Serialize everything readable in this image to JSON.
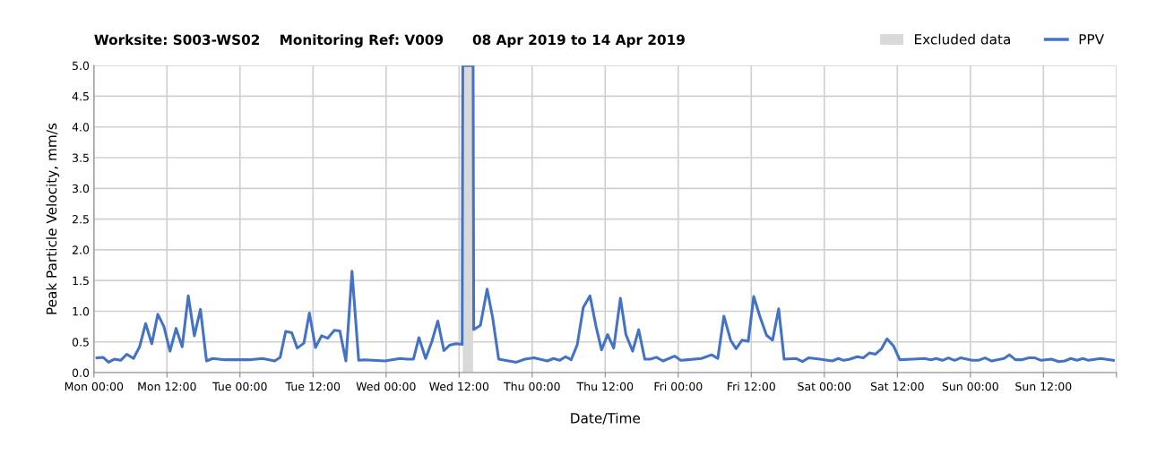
{
  "chart_data": {
    "type": "line",
    "title": "Worksite: S003-WS02    Monitoring Ref: V009      08 Apr 2019 to 14 Apr 2019",
    "xlabel": "Date/Time",
    "ylabel": "Peak Particle Velocity, mm/s",
    "series": [
      {
        "name": "PPV",
        "color": "#4472c4",
        "x": [
          "2019-04-08T00:30",
          "2019-04-08T01:30",
          "2019-04-08T02:24",
          "2019-04-08T03:24",
          "2019-04-08T04:24",
          "2019-04-08T05:24",
          "2019-04-08T06:30",
          "2019-04-08T07:30",
          "2019-04-08T08:30",
          "2019-04-08T09:30",
          "2019-04-08T10:30",
          "2019-04-08T11:30",
          "2019-04-08T12:30",
          "2019-04-08T13:30",
          "2019-04-08T14:30",
          "2019-04-08T15:30",
          "2019-04-08T16:30",
          "2019-04-08T17:30",
          "2019-04-08T18:30",
          "2019-04-08T19:30",
          "2019-04-08T21:30",
          "2019-04-08T23:30",
          "2019-04-09T01:30",
          "2019-04-09T03:42",
          "2019-04-09T05:42",
          "2019-04-09T06:36",
          "2019-04-09T07:30",
          "2019-04-09T08:30",
          "2019-04-09T09:24",
          "2019-04-09T10:30",
          "2019-04-09T11:24",
          "2019-04-09T12:24",
          "2019-04-09T13:24",
          "2019-04-09T14:24",
          "2019-04-09T15:30",
          "2019-04-09T16:24",
          "2019-04-09T17:24",
          "2019-04-09T18:24",
          "2019-04-09T19:30",
          "2019-04-09T20:30",
          "2019-04-09T23:48",
          "2019-04-10T02:18",
          "2019-04-10T03:30",
          "2019-04-10T04:30",
          "2019-04-10T05:24",
          "2019-04-10T06:30",
          "2019-04-10T07:30",
          "2019-04-10T08:30",
          "2019-04-10T09:30",
          "2019-04-10T10:30",
          "2019-04-10T11:30",
          "2019-04-10T12:30",
          "2019-04-10T12:36",
          "2019-04-10T14:18",
          "2019-04-10T14:24",
          "2019-04-10T15:30",
          "2019-04-10T16:36",
          "2019-04-10T17:30",
          "2019-04-10T18:30",
          "2019-04-10T21:24",
          "2019-04-10T22:48",
          "2019-04-11T00:18",
          "2019-04-11T02:30",
          "2019-04-11T03:30",
          "2019-04-11T04:30",
          "2019-04-11T05:30",
          "2019-04-11T06:24",
          "2019-04-11T07:24",
          "2019-04-11T08:24",
          "2019-04-11T09:30",
          "2019-04-11T10:30",
          "2019-04-11T11:24",
          "2019-04-11T12:24",
          "2019-04-11T13:24",
          "2019-04-11T14:30",
          "2019-04-11T15:24",
          "2019-04-11T16:30",
          "2019-04-11T17:30",
          "2019-04-11T18:30",
          "2019-04-11T19:24",
          "2019-04-11T20:24",
          "2019-04-11T21:30",
          "2019-04-11T23:24",
          "2019-04-12T00:24",
          "2019-04-12T03:48",
          "2019-04-12T05:30",
          "2019-04-12T06:30",
          "2019-04-12T07:30",
          "2019-04-12T08:36",
          "2019-04-12T09:30",
          "2019-04-12T10:30",
          "2019-04-12T11:30",
          "2019-04-12T12:24",
          "2019-04-12T13:24",
          "2019-04-12T14:30",
          "2019-04-12T15:30",
          "2019-04-12T16:30",
          "2019-04-12T17:24",
          "2019-04-12T19:24",
          "2019-04-12T20:24",
          "2019-04-12T21:24",
          "2019-04-12T23:18",
          "2019-04-13T01:18",
          "2019-04-13T02:18",
          "2019-04-13T03:12",
          "2019-04-13T04:12",
          "2019-04-13T05:24",
          "2019-04-13T06:24",
          "2019-04-13T07:24",
          "2019-04-13T08:24",
          "2019-04-13T09:24",
          "2019-04-13T10:18",
          "2019-04-13T11:24",
          "2019-04-13T12:24",
          "2019-04-13T14:30",
          "2019-04-13T16:30",
          "2019-04-13T17:30",
          "2019-04-13T18:24",
          "2019-04-13T19:24",
          "2019-04-13T20:24",
          "2019-04-13T21:24",
          "2019-04-13T22:24",
          "2019-04-14T00:18",
          "2019-04-14T01:18",
          "2019-04-14T02:24",
          "2019-04-14T03:30",
          "2019-04-14T05:30",
          "2019-04-14T06:24",
          "2019-04-14T07:24",
          "2019-04-14T08:24",
          "2019-04-14T09:36",
          "2019-04-14T10:36",
          "2019-04-14T11:36",
          "2019-04-14T13:18",
          "2019-04-14T14:30",
          "2019-04-14T15:30",
          "2019-04-14T16:30",
          "2019-04-14T17:30",
          "2019-04-14T18:30",
          "2019-04-14T19:24",
          "2019-04-14T21:24",
          "2019-04-14T23:30"
        ],
        "values": [
          0.24,
          0.25,
          0.17,
          0.22,
          0.2,
          0.3,
          0.23,
          0.42,
          0.8,
          0.47,
          0.95,
          0.75,
          0.35,
          0.72,
          0.42,
          1.25,
          0.6,
          1.03,
          0.19,
          0.23,
          0.21,
          0.21,
          0.21,
          0.23,
          0.19,
          0.25,
          0.67,
          0.65,
          0.4,
          0.48,
          0.97,
          0.41,
          0.6,
          0.56,
          0.69,
          0.68,
          0.19,
          1.65,
          0.2,
          0.21,
          0.19,
          0.23,
          0.22,
          0.22,
          0.57,
          0.23,
          0.5,
          0.84,
          0.36,
          0.45,
          0.47,
          0.46,
          5.0,
          5.0,
          0.7,
          0.77,
          1.36,
          0.9,
          0.22,
          0.17,
          0.22,
          0.24,
          0.19,
          0.23,
          0.2,
          0.26,
          0.21,
          0.45,
          1.06,
          1.25,
          0.75,
          0.37,
          0.62,
          0.4,
          1.21,
          0.62,
          0.35,
          0.7,
          0.22,
          0.22,
          0.25,
          0.19,
          0.27,
          0.2,
          0.23,
          0.29,
          0.23,
          0.92,
          0.53,
          0.39,
          0.53,
          0.51,
          1.24,
          0.92,
          0.61,
          0.53,
          1.04,
          0.22,
          0.23,
          0.18,
          0.24,
          0.22,
          0.19,
          0.23,
          0.2,
          0.22,
          0.26,
          0.24,
          0.32,
          0.3,
          0.39,
          0.55,
          0.43,
          0.21,
          0.22,
          0.23,
          0.21,
          0.23,
          0.2,
          0.24,
          0.2,
          0.24,
          0.2,
          0.2,
          0.24,
          0.19,
          0.23,
          0.29,
          0.21,
          0.21,
          0.24,
          0.24,
          0.2,
          0.22,
          0.18,
          0.19,
          0.23,
          0.2,
          0.23,
          0.2,
          0.23,
          0.2
        ]
      }
    ],
    "bands": [
      {
        "axis": "x",
        "from": "2019-04-10T12:36",
        "to": "2019-04-10T14:18",
        "label": "Excluded data",
        "color": "#d9d9d9"
      }
    ],
    "xlim": [
      "2019-04-08T00:00",
      "2019-04-15T00:00"
    ],
    "xticks": [
      {
        "value": "2019-04-08T00:00",
        "label": "Mon 00:00"
      },
      {
        "value": "2019-04-08T12:00",
        "label": "Mon 12:00"
      },
      {
        "value": "2019-04-09T00:00",
        "label": "Tue 00:00"
      },
      {
        "value": "2019-04-09T12:00",
        "label": "Tue 12:00"
      },
      {
        "value": "2019-04-10T00:00",
        "label": "Wed 00:00"
      },
      {
        "value": "2019-04-10T12:00",
        "label": "Wed 12:00"
      },
      {
        "value": "2019-04-11T00:00",
        "label": "Thu 00:00"
      },
      {
        "value": "2019-04-11T12:00",
        "label": "Thu 12:00"
      },
      {
        "value": "2019-04-12T00:00",
        "label": "Fri 00:00"
      },
      {
        "value": "2019-04-12T12:00",
        "label": "Fri 12:00"
      },
      {
        "value": "2019-04-13T00:00",
        "label": "Sat 00:00"
      },
      {
        "value": "2019-04-13T12:00",
        "label": "Sat 12:00"
      },
      {
        "value": "2019-04-14T00:00",
        "label": "Sun 00:00"
      },
      {
        "value": "2019-04-14T12:00",
        "label": "Sun 12:00"
      },
      {
        "value": "2019-04-15T00:00",
        "label": null
      }
    ],
    "ylim": [
      0,
      5
    ],
    "yticks": [
      {
        "value": 0,
        "label": "0.0"
      },
      {
        "value": 0.5,
        "label": "0.5"
      },
      {
        "value": 1,
        "label": "1.0"
      },
      {
        "value": 1.5,
        "label": "1.5"
      },
      {
        "value": 2,
        "label": "2.0"
      },
      {
        "value": 2.5,
        "label": "2.5"
      },
      {
        "value": 3,
        "label": "3.0"
      },
      {
        "value": 3.5,
        "label": "3.5"
      },
      {
        "value": 4,
        "label": "4.0"
      },
      {
        "value": 4.5,
        "label": "4.5"
      },
      {
        "value": 5,
        "label": "5.0"
      }
    ],
    "grid": true,
    "legend": "top right",
    "marker": "none",
    "line_style": "solid"
  }
}
